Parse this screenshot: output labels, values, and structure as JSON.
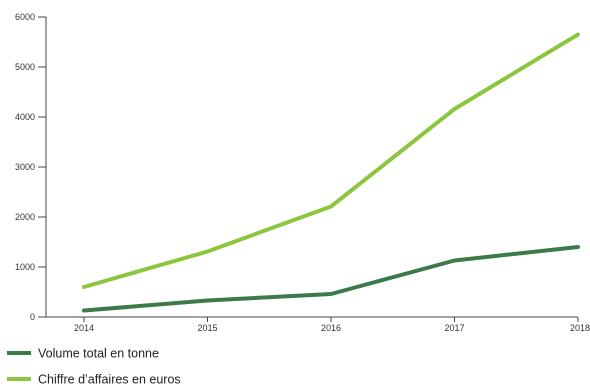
{
  "chart_data": {
    "type": "line",
    "x": [
      2014,
      2015,
      2016,
      2017,
      2018
    ],
    "x_tick_labels": [
      "2014",
      "2015",
      "2016",
      "2017",
      "2018"
    ],
    "y_tick_labels": [
      "0",
      "1000",
      "2000",
      "3000",
      "4000",
      "5000",
      "6000"
    ],
    "ylim": [
      0,
      6000
    ],
    "grid": false,
    "legend_position": "bottom-left",
    "series": [
      {
        "name": "Volume total en tonne",
        "color": "#3d7a4a",
        "values": [
          130,
          330,
          460,
          1130,
          1400
        ]
      },
      {
        "name": "Chiffre d’affaires en euros",
        "color": "#8cc63f",
        "values": [
          600,
          1310,
          2210,
          4160,
          5650
        ]
      }
    ]
  }
}
